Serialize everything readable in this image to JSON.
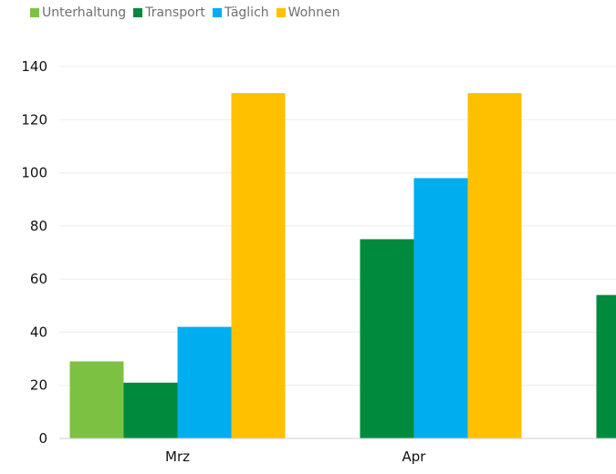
{
  "chart_data": {
    "type": "bar",
    "categories": [
      "Mrz",
      "Apr",
      ""
    ],
    "series": [
      {
        "name": "Unterhaltung",
        "color": "#7dc142",
        "values": [
          29,
          0,
          0
        ]
      },
      {
        "name": "Transport",
        "color": "#008a3e",
        "values": [
          21,
          75,
          54
        ]
      },
      {
        "name": "Täglich",
        "color": "#00adef",
        "values": [
          42,
          98,
          null
        ]
      },
      {
        "name": "Wohnen",
        "color": "#ffc000",
        "values": [
          130,
          130,
          null
        ]
      }
    ],
    "ylim": [
      0,
      140
    ],
    "yticks": [
      "0",
      "20",
      "40",
      "60",
      "80",
      "100",
      "120",
      "140"
    ],
    "title": "",
    "xlabel": "",
    "ylabel": "",
    "grid": true,
    "legend": "top-left"
  }
}
